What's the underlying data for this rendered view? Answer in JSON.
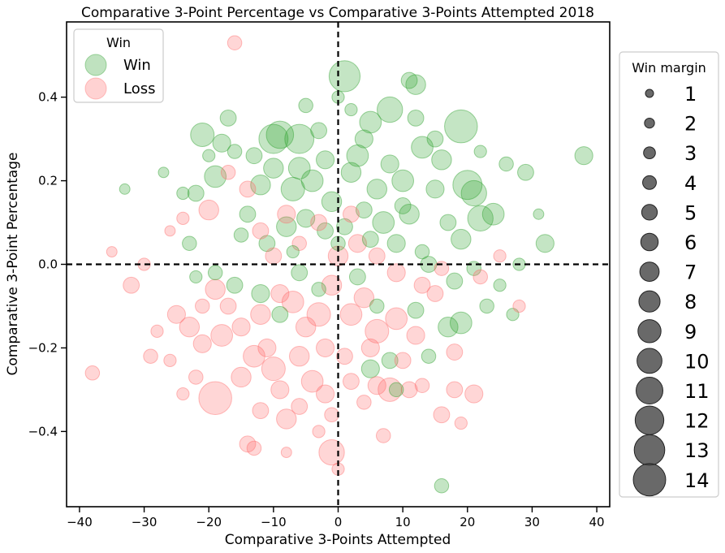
{
  "chart_data": {
    "type": "scatter",
    "title": "Comparative 3-Point Percentage vs Comparative 3-Points Attempted 2018",
    "xlabel": "Comparative 3-Points Attempted",
    "ylabel": "Comparative 3-Point Percentage",
    "xlim": [
      -42,
      42
    ],
    "ylim": [
      -0.58,
      0.58
    ],
    "xticks": [
      -40,
      -30,
      -20,
      -10,
      0,
      10,
      20,
      30,
      40
    ],
    "yticks": [
      -0.4,
      -0.2,
      0.0,
      0.2,
      0.4
    ],
    "xtick_labels": [
      "−40",
      "−30",
      "−20",
      "−10",
      "0",
      "10",
      "20",
      "30",
      "40"
    ],
    "ytick_labels": [
      "−0.4",
      "−0.2",
      "0.0",
      "0.2",
      "0.4"
    ],
    "reference_lines": {
      "x": 0,
      "y": 0,
      "style": "dashed"
    },
    "grid": false,
    "legend_hue": {
      "title": "Win",
      "placement": "top-left",
      "entries": [
        {
          "label": "Win",
          "color": "#2ca02c"
        },
        {
          "label": "Loss",
          "color": "#ff6b6b"
        }
      ]
    },
    "legend_size": {
      "title": "Win margin",
      "placement": "outside-right",
      "color": "#444444",
      "labels": [
        "1",
        "2",
        "3",
        "4",
        "5",
        "6",
        "7",
        "8",
        "9",
        "10",
        "11",
        "12",
        "13",
        "14"
      ]
    },
    "series": [
      {
        "name": "Win",
        "color": "#2ca02c",
        "points": [
          [
            1,
            0.45,
            14
          ],
          [
            11,
            0.44,
            6
          ],
          [
            12,
            0.43,
            8
          ],
          [
            19,
            0.33,
            15
          ],
          [
            8,
            0.37,
            11
          ],
          [
            5,
            0.34,
            9
          ],
          [
            -6,
            0.3,
            13
          ],
          [
            -9,
            0.31,
            12
          ],
          [
            -10,
            0.3,
            13
          ],
          [
            -21,
            0.31,
            10
          ],
          [
            -17,
            0.35,
            6
          ],
          [
            -18,
            0.29,
            7
          ],
          [
            38,
            0.26,
            7
          ],
          [
            29,
            0.22,
            6
          ],
          [
            26,
            0.24,
            5
          ],
          [
            -19,
            0.21,
            9
          ],
          [
            -22,
            0.17,
            6
          ],
          [
            -23,
            0.05,
            5
          ],
          [
            32,
            0.05,
            7
          ],
          [
            28,
            0.0,
            4
          ],
          [
            22,
            0.11,
            11
          ],
          [
            24,
            0.12,
            9
          ],
          [
            21,
            0.17,
            11
          ],
          [
            20,
            0.19,
            13
          ],
          [
            16,
            0.25,
            8
          ],
          [
            13,
            0.28,
            9
          ],
          [
            12,
            0.35,
            6
          ],
          [
            15,
            0.18,
            7
          ],
          [
            17,
            0.1,
            6
          ],
          [
            19,
            0.06,
            8
          ],
          [
            10,
            0.2,
            9
          ],
          [
            8,
            0.24,
            7
          ],
          [
            6,
            0.18,
            8
          ],
          [
            4,
            0.13,
            6
          ],
          [
            3,
            0.26,
            9
          ],
          [
            -2,
            0.25,
            7
          ],
          [
            -4,
            0.2,
            9
          ],
          [
            -7,
            0.18,
            10
          ],
          [
            -12,
            0.19,
            8
          ],
          [
            -14,
            0.12,
            6
          ],
          [
            -15,
            0.07,
            5
          ],
          [
            -11,
            0.05,
            6
          ],
          [
            -8,
            0.09,
            8
          ],
          [
            -5,
            0.11,
            7
          ],
          [
            -1,
            0.15,
            8
          ],
          [
            1,
            0.09,
            6
          ],
          [
            5,
            0.06,
            6
          ],
          [
            9,
            0.05,
            7
          ],
          [
            13,
            0.03,
            5
          ],
          [
            11,
            0.12,
            8
          ],
          [
            -3,
            0.32,
            6
          ],
          [
            0,
            0.4,
            4
          ],
          [
            2,
            0.37,
            4
          ],
          [
            -13,
            0.26,
            6
          ],
          [
            -16,
            0.27,
            5
          ],
          [
            14,
            0.0,
            6
          ],
          [
            18,
            -0.04,
            6
          ],
          [
            21,
            -0.01,
            5
          ],
          [
            25,
            -0.05,
            4
          ],
          [
            17,
            -0.15,
            8
          ],
          [
            19,
            -0.14,
            9
          ],
          [
            23,
            -0.1,
            5
          ],
          [
            12,
            -0.11,
            6
          ],
          [
            14,
            -0.22,
            5
          ],
          [
            8,
            -0.23,
            6
          ],
          [
            5,
            -0.25,
            7
          ],
          [
            9,
            -0.3,
            5
          ],
          [
            16,
            -0.53,
            5
          ],
          [
            -16,
            -0.05,
            6
          ],
          [
            -12,
            -0.07,
            7
          ],
          [
            -19,
            -0.02,
            5
          ],
          [
            -22,
            -0.03,
            4
          ],
          [
            -6,
            -0.02,
            6
          ],
          [
            -3,
            -0.06,
            5
          ],
          [
            3,
            -0.03,
            6
          ],
          [
            6,
            -0.1,
            5
          ],
          [
            -9,
            -0.12,
            6
          ],
          [
            -10,
            0.23,
            8
          ],
          [
            -6,
            0.23,
            9
          ],
          [
            2,
            0.22,
            8
          ],
          [
            7,
            0.1,
            9
          ],
          [
            0,
            0.05,
            5
          ],
          [
            -2,
            0.08,
            6
          ],
          [
            -7,
            0.03,
            4
          ],
          [
            10,
            0.14,
            6
          ],
          [
            22,
            0.27,
            4
          ],
          [
            -24,
            0.17,
            4
          ],
          [
            -33,
            0.18,
            3
          ],
          [
            31,
            0.12,
            3
          ],
          [
            27,
            -0.12,
            4
          ],
          [
            -27,
            0.22,
            3
          ],
          [
            -20,
            0.26,
            4
          ],
          [
            -5,
            0.38,
            5
          ],
          [
            4,
            0.3,
            7
          ],
          [
            15,
            0.3,
            6
          ]
        ]
      },
      {
        "name": "Loss",
        "color": "#ff6b6b",
        "points": [
          [
            -16,
            0.53,
            5
          ],
          [
            -38,
            -0.26,
            5
          ],
          [
            -19,
            -0.32,
            15
          ],
          [
            -1,
            -0.45,
            11
          ],
          [
            8,
            -0.3,
            10
          ],
          [
            -8,
            -0.37,
            8
          ],
          [
            -12,
            -0.35,
            6
          ],
          [
            -14,
            -0.43,
            6
          ],
          [
            -13,
            -0.44,
            5
          ],
          [
            7,
            -0.41,
            5
          ],
          [
            -25,
            -0.12,
            7
          ],
          [
            -23,
            -0.15,
            8
          ],
          [
            -21,
            -0.19,
            7
          ],
          [
            -18,
            -0.17,
            9
          ],
          [
            -19,
            -0.06,
            8
          ],
          [
            -20,
            0.13,
            8
          ],
          [
            -32,
            -0.05,
            6
          ],
          [
            -29,
            -0.22,
            5
          ],
          [
            -28,
            -0.16,
            4
          ],
          [
            -26,
            -0.23,
            4
          ],
          [
            -15,
            -0.27,
            8
          ],
          [
            -13,
            -0.22,
            9
          ],
          [
            -10,
            -0.25,
            10
          ],
          [
            -9,
            -0.3,
            7
          ],
          [
            -6,
            -0.34,
            6
          ],
          [
            -4,
            -0.28,
            9
          ],
          [
            -2,
            -0.31,
            7
          ],
          [
            2,
            -0.28,
            6
          ],
          [
            4,
            -0.33,
            5
          ],
          [
            6,
            -0.29,
            7
          ],
          [
            11,
            -0.3,
            6
          ],
          [
            13,
            -0.29,
            5
          ],
          [
            18,
            -0.3,
            6
          ],
          [
            21,
            -0.31,
            7
          ],
          [
            18,
            -0.21,
            6
          ],
          [
            15,
            -0.07,
            6
          ],
          [
            12,
            -0.17,
            7
          ],
          [
            9,
            -0.13,
            9
          ],
          [
            6,
            -0.16,
            10
          ],
          [
            4,
            -0.08,
            8
          ],
          [
            2,
            -0.12,
            9
          ],
          [
            -1,
            -0.05,
            8
          ],
          [
            -3,
            -0.12,
            10
          ],
          [
            -5,
            -0.15,
            8
          ],
          [
            -7,
            -0.09,
            9
          ],
          [
            -9,
            -0.07,
            7
          ],
          [
            -12,
            -0.12,
            8
          ],
          [
            -15,
            -0.15,
            7
          ],
          [
            -17,
            -0.1,
            6
          ],
          [
            -21,
            -0.1,
            5
          ],
          [
            -12,
            0.08,
            6
          ],
          [
            -8,
            0.12,
            7
          ],
          [
            -3,
            0.1,
            6
          ],
          [
            0,
            0.02,
            8
          ],
          [
            3,
            0.05,
            7
          ],
          [
            6,
            0.02,
            6
          ],
          [
            9,
            -0.02,
            7
          ],
          [
            13,
            -0.05,
            6
          ],
          [
            16,
            -0.01,
            5
          ],
          [
            22,
            -0.03,
            5
          ],
          [
            25,
            0.02,
            4
          ],
          [
            -24,
            0.11,
            4
          ],
          [
            -26,
            0.08,
            3
          ],
          [
            -30,
            0.0,
            4
          ],
          [
            -11,
            -0.2,
            7
          ],
          [
            -6,
            -0.22,
            8
          ],
          [
            -2,
            -0.2,
            7
          ],
          [
            1,
            -0.22,
            6
          ],
          [
            5,
            -0.2,
            7
          ],
          [
            10,
            -0.23,
            6
          ],
          [
            -17,
            0.22,
            5
          ],
          [
            -14,
            0.18,
            6
          ],
          [
            -10,
            0.02,
            6
          ],
          [
            -6,
            0.05,
            5
          ],
          [
            2,
            0.12,
            6
          ],
          [
            19,
            -0.38,
            4
          ],
          [
            -3,
            -0.4,
            4
          ],
          [
            -8,
            -0.45,
            3
          ],
          [
            16,
            -0.36,
            6
          ],
          [
            28,
            -0.1,
            4
          ],
          [
            -22,
            -0.27,
            5
          ],
          [
            -35,
            0.03,
            3
          ],
          [
            -24,
            -0.31,
            4
          ],
          [
            0,
            -0.49,
            4
          ],
          [
            -1,
            -0.36,
            5
          ]
        ]
      }
    ]
  }
}
